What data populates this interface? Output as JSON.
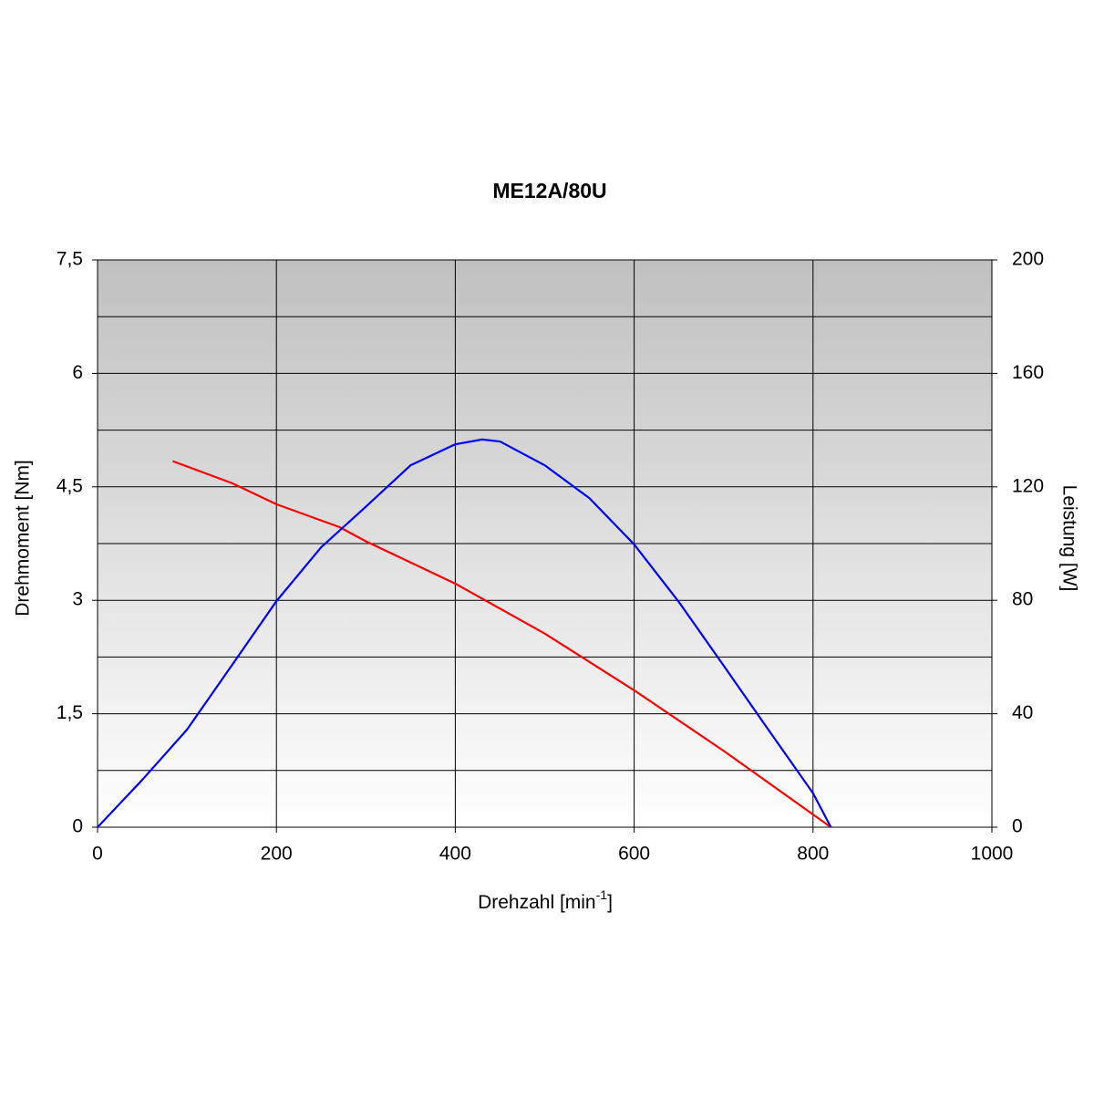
{
  "chart_data": {
    "type": "line",
    "title": "ME12A/80U",
    "x_label": {
      "text": "Drehzahl [min",
      "superscript": "-1",
      "suffix": "]"
    },
    "y_label": "Drehmoment [Nm]",
    "y2_label": "Leistung [W]",
    "xlim": [
      0,
      1000
    ],
    "xticks": [
      0,
      200,
      400,
      600,
      800,
      1000
    ],
    "ylim": [
      0,
      7.5
    ],
    "yticks": [
      0,
      {
        "value": 1.5,
        "label": "1,5"
      },
      3,
      {
        "value": 4.5,
        "label": "4,5"
      },
      6,
      {
        "value": 7.5,
        "label": "7,5"
      }
    ],
    "y_minor_gridlines": [
      0.75,
      2.25,
      3.75,
      5.25,
      6.75
    ],
    "y2lim": [
      0,
      200
    ],
    "y2ticks": [
      0,
      40,
      80,
      120,
      160,
      200
    ],
    "grid": true,
    "series": [
      {
        "color": "#ff0000",
        "x": [
          84,
          150,
          200,
          270,
          300,
          400,
          500,
          600,
          700,
          820
        ],
        "values": [
          4.84,
          4.55,
          4.27,
          3.97,
          3.78,
          3.22,
          2.56,
          1.81,
          1.01,
          0
        ]
      },
      {
        "color": "#0000ff",
        "axis": "y2",
        "x": [
          0,
          50,
          100,
          150,
          200,
          250,
          300,
          350,
          400,
          430,
          450,
          500,
          550,
          600,
          650,
          700,
          750,
          800,
          820
        ],
        "values": [
          0,
          16.7,
          34.4,
          57,
          79.7,
          98.7,
          113,
          127.6,
          135,
          136.7,
          136,
          127.6,
          116,
          99.7,
          79.4,
          57,
          34.4,
          12,
          0
        ]
      }
    ]
  }
}
